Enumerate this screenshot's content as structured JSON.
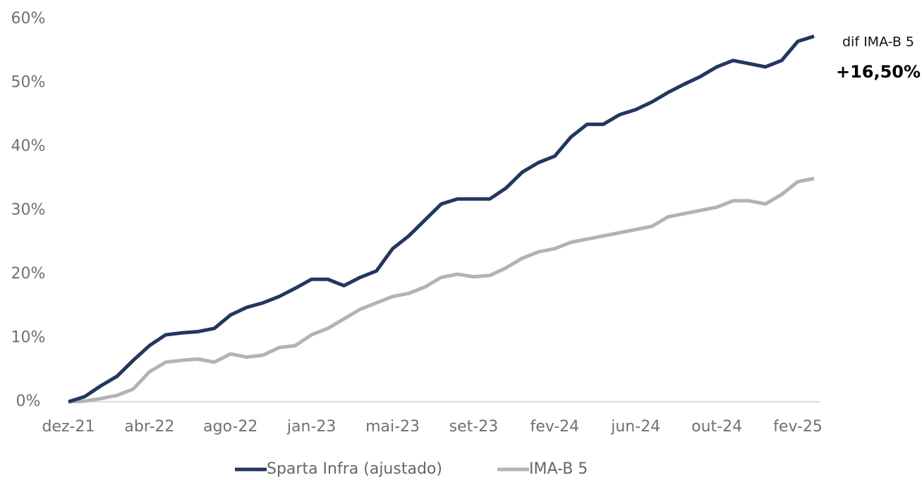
{
  "chart_data": {
    "type": "line",
    "categories": [
      "dez-21",
      null,
      null,
      null,
      null,
      "abr-22",
      null,
      null,
      null,
      null,
      "ago-22",
      null,
      null,
      null,
      null,
      "jan-23",
      null,
      null,
      null,
      null,
      "mai-23",
      null,
      null,
      null,
      null,
      "set-23",
      null,
      null,
      null,
      null,
      "fev-24",
      null,
      null,
      null,
      null,
      "jun-24",
      null,
      null,
      null,
      null,
      "out-24",
      null,
      null,
      null,
      null,
      "fev-25",
      null
    ],
    "series": [
      {
        "name": "Sparta Infra (ajustado)",
        "color": "#22375f",
        "values": [
          0,
          0.8,
          2.5,
          4,
          6.5,
          8.8,
          10.5,
          10.8,
          11,
          11.5,
          13.6,
          14.8,
          15.5,
          16.5,
          17.8,
          19.2,
          19.2,
          18.2,
          19.5,
          20.5,
          24,
          26,
          28.5,
          31,
          31.8,
          31.8,
          31.8,
          33.5,
          36,
          37.5,
          38.5,
          41.5,
          43.5,
          43.5,
          45,
          45.8,
          47,
          48.5,
          49.8,
          51,
          52.5,
          53.5,
          53,
          52.5,
          53.5,
          56.5,
          57.3
        ]
      },
      {
        "name": "IMA-B 5",
        "color": "#b3b3b5",
        "values": [
          0,
          0.1,
          0.5,
          1,
          2,
          4.7,
          6.2,
          6.5,
          6.7,
          6.2,
          7.5,
          7,
          7.3,
          8.5,
          8.8,
          10.5,
          11.5,
          13,
          14.5,
          15.5,
          16.5,
          17,
          18,
          19.5,
          20,
          19.6,
          19.8,
          21,
          22.5,
          23.5,
          24,
          25,
          25.5,
          26,
          26.5,
          27,
          27.5,
          29,
          29.5,
          30,
          30.5,
          31.5,
          31.5,
          31,
          32.5,
          34.5,
          35
        ]
      }
    ],
    "ylim": [
      0,
      60
    ],
    "yticks": [
      {
        "value": 0,
        "label": "0%"
      },
      {
        "value": 10,
        "label": "10%"
      },
      {
        "value": 20,
        "label": "20%"
      },
      {
        "value": 30,
        "label": "30%"
      },
      {
        "value": 40,
        "label": "40%"
      },
      {
        "value": 50,
        "label": "50%"
      },
      {
        "value": 60,
        "label": "60%"
      }
    ],
    "annotations": [
      "dif IMA-B 5",
      "+16,50%"
    ],
    "grid": false,
    "legend": "bottom"
  }
}
